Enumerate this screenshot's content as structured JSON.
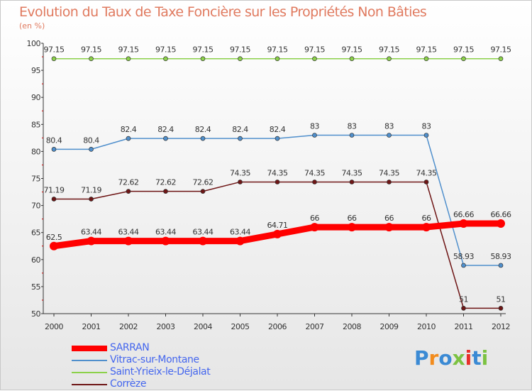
{
  "colors": {
    "sarran": "#ff0000",
    "vitrac": "#4f8fcc",
    "saint": "#8cd14a",
    "correze": "#6e1515",
    "title": "#e07a5f",
    "legend_text": "#4466ee"
  },
  "logo": {
    "text": "Proxiti",
    "letters": [
      "P",
      "r",
      "o",
      "x",
      "i",
      "t",
      "i"
    ],
    "letter_colors": [
      "#3b8ad4",
      "#f28c1e",
      "#3b8ad4",
      "#7cc242",
      "#e8302a",
      "#3b8ad4",
      "#7cc242"
    ]
  },
  "chart_data": {
    "type": "line",
    "title": "Evolution du Taux de Taxe Foncière sur les Propriétés Non Bâties",
    "subtitle": "(en %)",
    "xlabel": "",
    "ylabel": "(en %)",
    "x": [
      2000,
      2001,
      2002,
      2003,
      2004,
      2005,
      2006,
      2007,
      2008,
      2009,
      2010,
      2011,
      2012
    ],
    "x_labels": [
      "2000",
      "2001",
      "2002",
      "2003",
      "2004",
      "2005",
      "2006",
      "2007",
      "2008",
      "2009",
      "2010",
      "2011",
      "2012"
    ],
    "ylim": [
      50,
      100
    ],
    "yticks": [
      50,
      55,
      60,
      65,
      70,
      75,
      80,
      85,
      90,
      95,
      100
    ],
    "y_labels": [
      "50",
      "55",
      "60",
      "65",
      "70",
      "75",
      "80",
      "85",
      "90",
      "95",
      "100"
    ],
    "grid": false,
    "legend_position": "bottom-left",
    "series": [
      {
        "key": "saint",
        "name": "Saint-Yrieix-le-Déjalat",
        "values": [
          97.15,
          97.15,
          97.15,
          97.15,
          97.15,
          97.15,
          97.15,
          97.15,
          97.15,
          97.15,
          97.15,
          97.15,
          97.15
        ],
        "labels": [
          "97.15",
          "97.15",
          "97.15",
          "97.15",
          "97.15",
          "97.15",
          "97.15",
          "97.15",
          "97.15",
          "97.15",
          "97.15",
          "97.15",
          "97.15"
        ]
      },
      {
        "key": "vitrac",
        "name": "Vitrac-sur-Montane",
        "values": [
          80.4,
          80.4,
          82.4,
          82.4,
          82.4,
          82.4,
          82.4,
          83,
          83,
          83,
          83,
          58.93,
          58.93
        ],
        "labels": [
          "80.4",
          "80.4",
          "82.4",
          "82.4",
          "82.4",
          "82.4",
          "82.4",
          "83",
          "83",
          "83",
          "83",
          "58.93",
          "58.93"
        ]
      },
      {
        "key": "correze",
        "name": "Corrèze",
        "values": [
          71.19,
          71.19,
          72.62,
          72.62,
          72.62,
          74.35,
          74.35,
          74.35,
          74.35,
          74.35,
          74.35,
          51,
          51
        ],
        "labels": [
          "71.19",
          "71.19",
          "72.62",
          "72.62",
          "72.62",
          "74.35",
          "74.35",
          "74.35",
          "74.35",
          "74.35",
          "74.35",
          "51",
          "51"
        ]
      },
      {
        "key": "sarran",
        "name": "SARRAN",
        "values": [
          62.5,
          63.44,
          63.44,
          63.44,
          63.44,
          63.44,
          64.71,
          66,
          66,
          66,
          66,
          66.66,
          66.66
        ],
        "labels": [
          "62.5",
          "63.44",
          "63.44",
          "63.44",
          "63.44",
          "63.44",
          "64.71",
          "66",
          "66",
          "66",
          "66",
          "66.66",
          "66.66"
        ]
      }
    ],
    "legend": [
      {
        "key": "sarran",
        "label": "SARRAN"
      },
      {
        "key": "vitrac",
        "label": "Vitrac-sur-Montane"
      },
      {
        "key": "saint",
        "label": "Saint-Yrieix-le-Déjalat"
      },
      {
        "key": "correze",
        "label": "Corrèze"
      }
    ]
  }
}
